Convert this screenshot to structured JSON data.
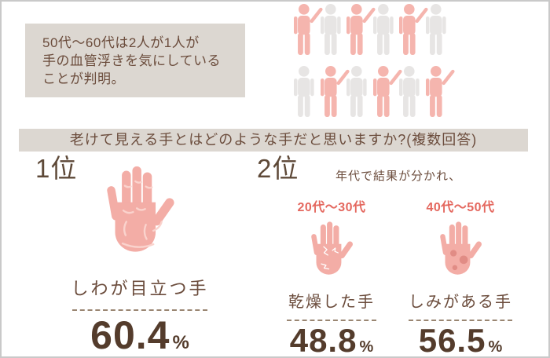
{
  "colors": {
    "beige": "#DCD7D1",
    "brown": "#6B4C3C",
    "dark_brown": "#543C2C",
    "rank_brown": "#5E4938",
    "red": "#E4675E",
    "hand_pink": "#F3ADA6",
    "hand_line": "#FAD3CD",
    "spot": "#E18C85",
    "person_pink": "#F5B5AE",
    "person_gray": "#E7E5E4",
    "frame_border": "#C9C9C9",
    "dash_brown": "#9A8672"
  },
  "headline": {
    "line1": "50代〜60代は2人が1人が",
    "line2": "手の血管浮きを気にしている",
    "line3": "ことが判明。"
  },
  "pictogram": {
    "rows": [
      [
        "pink",
        "gray",
        "pink",
        "gray",
        "pink",
        "gray"
      ],
      [
        "gray",
        "pink",
        "gray",
        "pink",
        "gray",
        "pink"
      ]
    ]
  },
  "question_banner": "老けて見える手とはどのような手だと思いますか?(複数回答)",
  "rank1": {
    "rank": "1位",
    "label": "しわが目立つ手",
    "value": "60.4",
    "unit": "%"
  },
  "rank2": {
    "rank": "2位",
    "note": "年代で結果が分かれ、",
    "items": [
      {
        "age_group": "20代〜30代",
        "label": "乾燥した手",
        "value": "48.8",
        "unit": "%",
        "hand_style": "dry"
      },
      {
        "age_group": "40代〜50代",
        "label": "しみがある手",
        "value": "56.5",
        "unit": "%",
        "hand_style": "spots"
      }
    ]
  },
  "chart_data": {
    "type": "pictograph_and_ranking",
    "title": "老けて見える手とはどのような手だと思いますか?(複数回答)",
    "pictograph": {
      "statement": "50代〜60代は2人が1人が手の血管浮きを気にしていることが判明。",
      "total_people": 12,
      "highlighted_people": 6,
      "ratio": "1 of 2"
    },
    "ranking": [
      {
        "rank": 1,
        "label": "しわが目立つ手",
        "value_percent": 60.4
      },
      {
        "rank": 2,
        "age_group": "20代〜30代",
        "label": "乾燥した手",
        "value_percent": 48.8
      },
      {
        "rank": 2,
        "age_group": "40代〜50代",
        "label": "しみがある手",
        "value_percent": 56.5
      }
    ],
    "legend_position": "none",
    "grid": false
  }
}
